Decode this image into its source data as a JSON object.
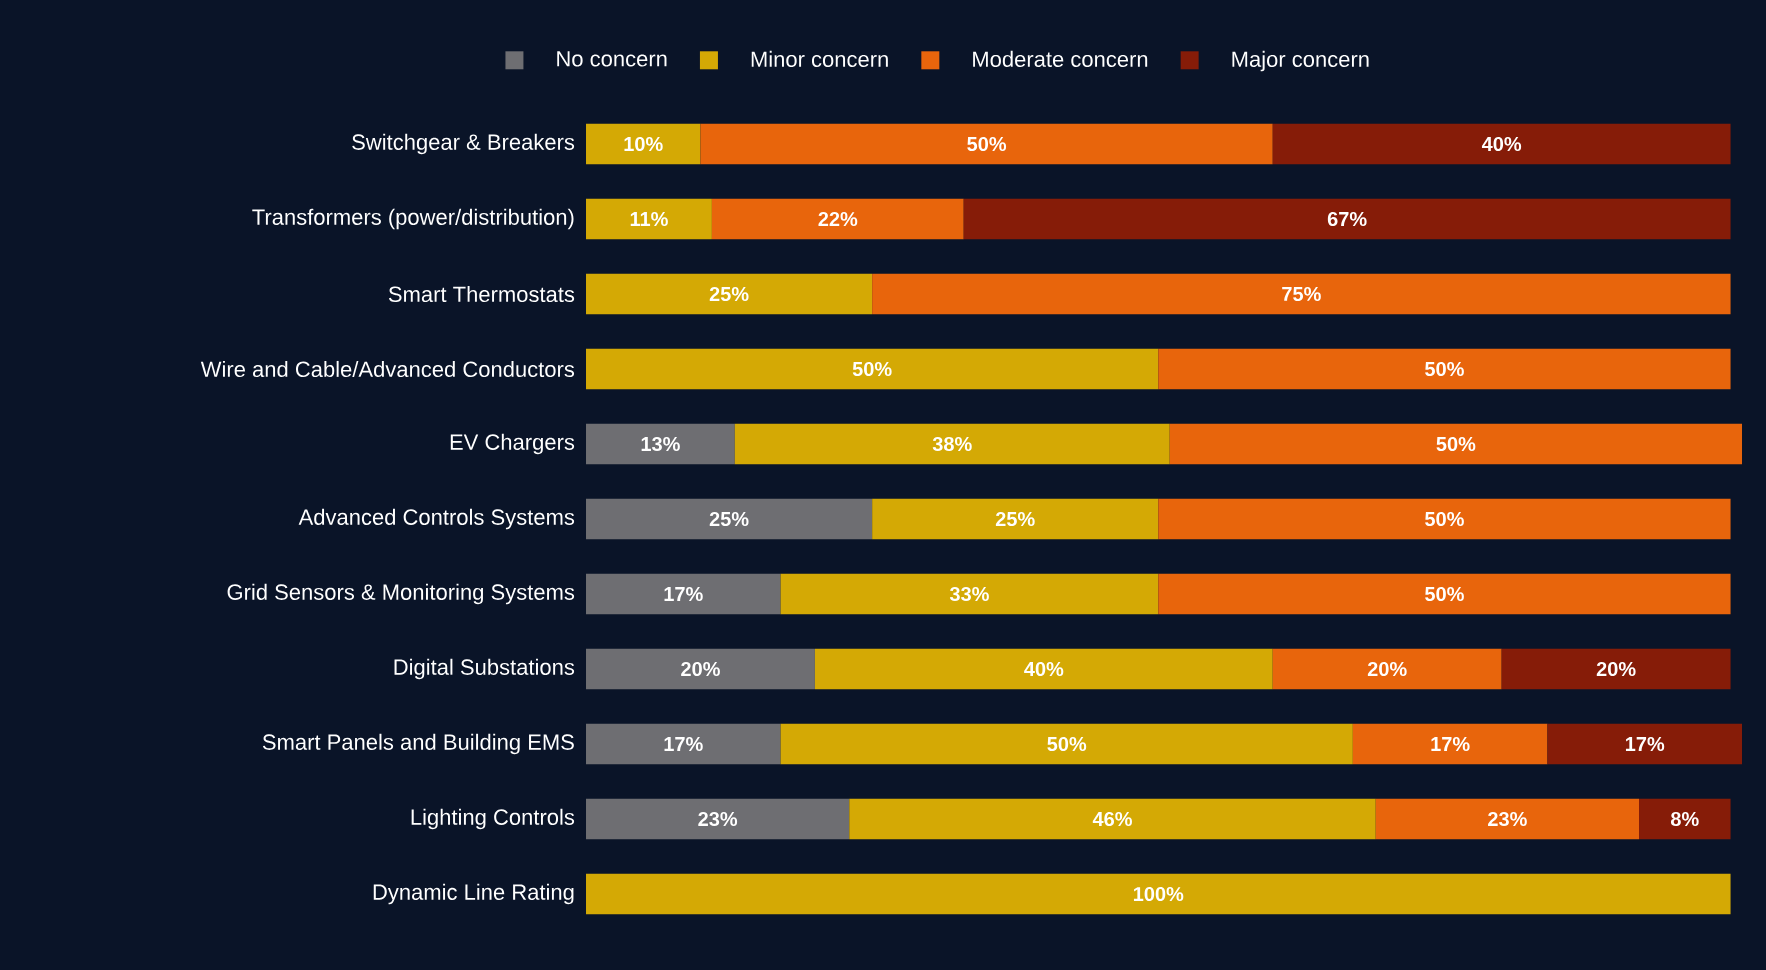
{
  "chart_data": {
    "type": "bar",
    "orientation": "horizontal",
    "stacked": true,
    "legend": "top",
    "tick_labels": "y",
    "xlim": [
      0,
      101
    ],
    "categories": [
      "Switchgear & Breakers",
      "Transformers (power/distribution)",
      "Smart Thermostats",
      "Wire and Cable/Advanced Conductors",
      "EV Chargers",
      "Advanced Controls Systems",
      "Grid Sensors & Monitoring Systems",
      "Digital Substations",
      "Smart Panels and Building EMS",
      "Lighting Controls",
      "Dynamic Line Rating"
    ],
    "series": [
      {
        "name": "No concern",
        "color": "#6e6e72",
        "values": [
          null,
          null,
          null,
          null,
          13,
          25,
          17,
          20,
          17,
          23,
          null
        ],
        "value_labels": [
          null,
          null,
          null,
          null,
          "13%",
          "25%",
          "17%",
          "20%",
          "17%",
          "23%",
          null
        ]
      },
      {
        "name": "Minor concern",
        "color": "#d4a905",
        "values": [
          10,
          11,
          25,
          50,
          38,
          25,
          33,
          40,
          50,
          46,
          100
        ],
        "value_labels": [
          "10%",
          "11%",
          "25%",
          "50%",
          "38%",
          "25%",
          "33%",
          "40%",
          "50%",
          "46%",
          "100%"
        ]
      },
      {
        "name": "Moderate concern",
        "color": "#e8650c",
        "values": [
          50,
          22,
          75,
          50,
          50,
          50,
          50,
          20,
          17,
          23,
          null
        ],
        "value_labels": [
          "50%",
          "22%",
          "75%",
          "50%",
          "50%",
          "50%",
          "50%",
          "20%",
          "17%",
          "23%",
          null
        ]
      },
      {
        "name": "Major concern",
        "color": "#861c08",
        "values": [
          40,
          67,
          null,
          null,
          null,
          null,
          null,
          20,
          17,
          8,
          null
        ],
        "value_labels": [
          "40%",
          "67%",
          null,
          null,
          null,
          null,
          null,
          "20%",
          "17%",
          "8%",
          null
        ]
      }
    ]
  }
}
